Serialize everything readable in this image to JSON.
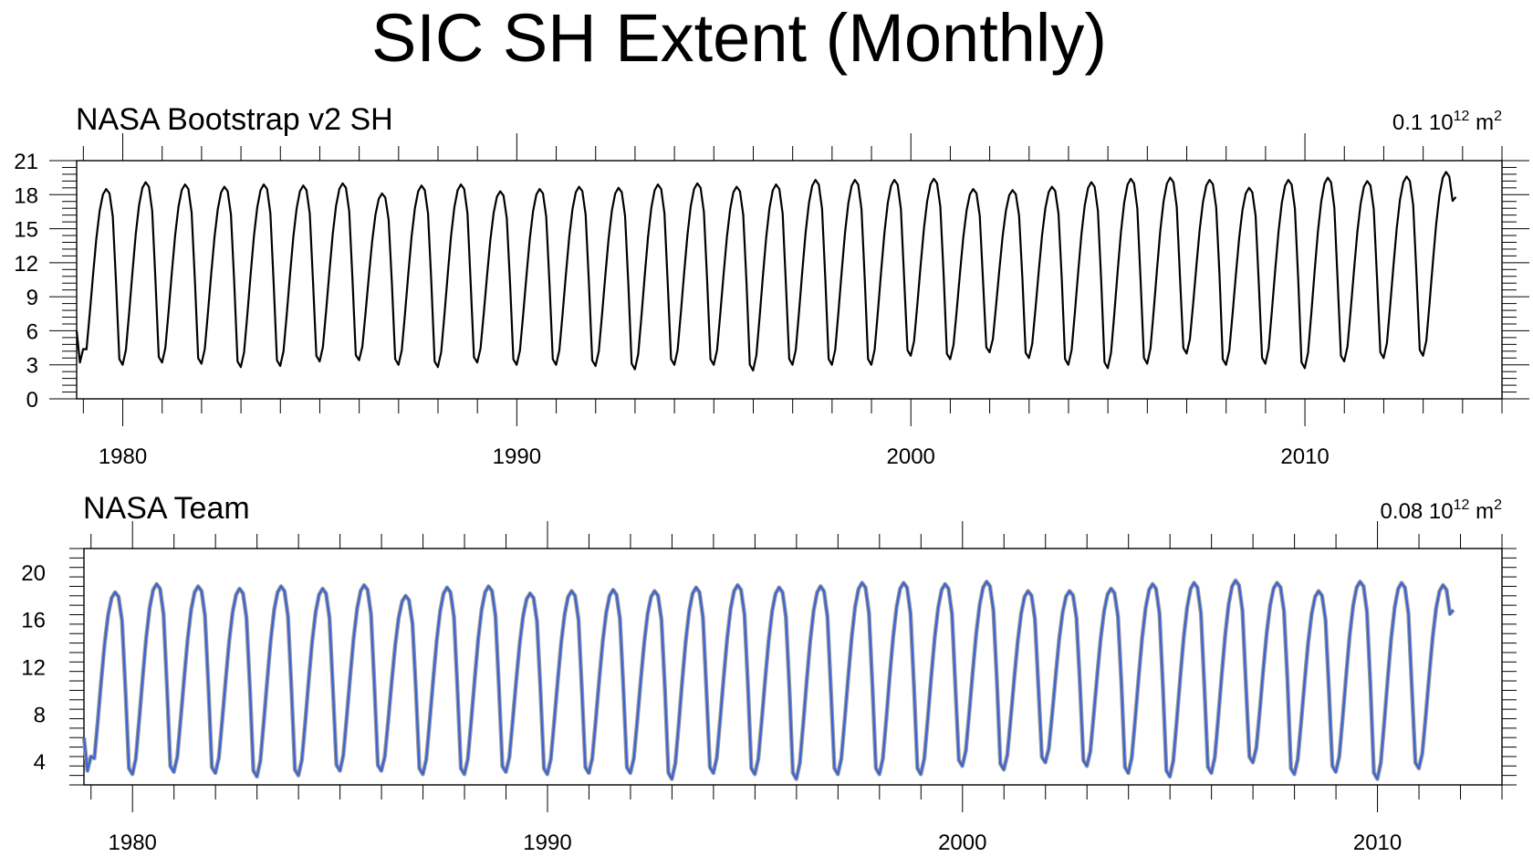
{
  "figure_title": "SIC SH Extent (Monthly)",
  "chart_data": [
    {
      "type": "line",
      "title": "NASA Bootstrap v2 SH",
      "units_text": "0.1 10",
      "units_exp1": "12",
      "units_mid": " m",
      "units_exp2": "2",
      "xlabel": "",
      "ylabel": "",
      "xlim": [
        1978.83,
        2015.0
      ],
      "ylim": [
        0,
        21
      ],
      "yticks": [
        0,
        3,
        6,
        9,
        12,
        15,
        18,
        21
      ],
      "ytick_labels": [
        "0",
        "3",
        "6",
        "9",
        "12",
        "15",
        "18",
        "21"
      ],
      "xticks": [
        1980,
        1990,
        2000,
        2010
      ],
      "xtick_labels": [
        "1980",
        "1990",
        "2000",
        "2010"
      ],
      "line_color": "#000000",
      "start_year": 1978.83,
      "annual_cycle": [
        3.4,
        2.9,
        4.2,
        7.5,
        11.0,
        14.3,
        16.8,
        18.3,
        18.8,
        18.4,
        16.3,
        10.2
      ],
      "annual_max": [
        18.5,
        19.1,
        18.9,
        18.7,
        18.9,
        18.8,
        19.0,
        18.1,
        18.8,
        18.9,
        18.3,
        18.5,
        18.7,
        18.6,
        18.9,
        19.0,
        18.7,
        18.9,
        19.3,
        19.3,
        19.3,
        19.4,
        18.5,
        18.4,
        18.7,
        19.1,
        19.4,
        19.5,
        19.3,
        18.6,
        19.3,
        19.5,
        19.2,
        19.6,
        20.0
      ],
      "annual_min": [
        3.1,
        3.0,
        3.2,
        3.1,
        2.8,
        2.9,
        3.3,
        3.4,
        3.0,
        2.8,
        3.2,
        3.0,
        3.0,
        2.9,
        2.6,
        3.0,
        3.0,
        2.5,
        3.0,
        3.0,
        3.0,
        3.8,
        3.5,
        4.1,
        3.6,
        3.0,
        2.7,
        3.1,
        4.0,
        3.0,
        3.1,
        2.7,
        3.3,
        3.6,
        3.8
      ],
      "last_value": 17.8
    },
    {
      "type": "line",
      "title": "NASA Team",
      "units_text": "0.08 10",
      "units_exp1": "12",
      "units_mid": " m",
      "units_exp2": "2",
      "xlabel": "",
      "ylabel": "",
      "xlim": [
        1978.83,
        2013.0
      ],
      "ylim": [
        2,
        22
      ],
      "yticks": [
        4,
        8,
        12,
        16,
        20
      ],
      "ytick_labels": [
        "4",
        "8",
        "12",
        "16",
        "20"
      ],
      "xticks": [
        1980,
        1990,
        2000,
        2010
      ],
      "xtick_labels": [
        "1980",
        "1990",
        "2000",
        "2010"
      ],
      "line_color": "#3a63d6",
      "shadow_color": "#9a9a9a",
      "start_year": 1978.83,
      "annual_cycle": [
        3.4,
        2.9,
        4.2,
        7.5,
        11.0,
        14.3,
        16.8,
        18.3,
        18.8,
        18.4,
        16.3,
        10.2
      ],
      "annual_max": [
        18.3,
        19.0,
        18.8,
        18.6,
        18.8,
        18.6,
        18.9,
        18.0,
        18.7,
        18.8,
        18.2,
        18.4,
        18.5,
        18.4,
        18.7,
        18.9,
        18.7,
        18.8,
        19.1,
        19.1,
        19.0,
        19.2,
        18.4,
        18.4,
        18.6,
        19.0,
        19.1,
        19.3,
        19.1,
        18.4,
        19.2,
        19.1,
        18.9
      ],
      "annual_min": [
        3.0,
        2.9,
        3.1,
        3.0,
        2.7,
        2.8,
        3.2,
        3.2,
        2.9,
        2.9,
        3.1,
        2.9,
        3.0,
        3.0,
        2.5,
        3.0,
        2.9,
        2.5,
        2.9,
        2.9,
        2.9,
        3.6,
        3.3,
        3.9,
        3.6,
        3.0,
        2.7,
        3.0,
        3.9,
        2.9,
        3.1,
        2.5,
        3.4
      ],
      "last_value": 16.8
    }
  ]
}
